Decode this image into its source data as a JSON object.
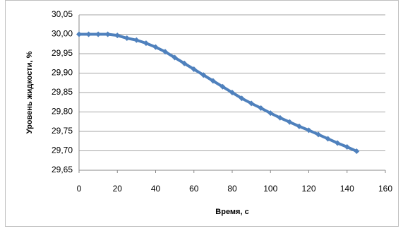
{
  "chart_data": {
    "type": "line",
    "x_label": "Время, с",
    "y_label": "Уровень жидкости, %",
    "x": [
      0,
      5,
      10,
      15,
      20,
      25,
      30,
      35,
      40,
      45,
      50,
      55,
      60,
      65,
      70,
      75,
      80,
      85,
      90,
      95,
      100,
      105,
      110,
      115,
      120,
      125,
      130,
      135,
      140,
      145
    ],
    "series": [
      {
        "color": "#4f81bd",
        "values": [
          30.0,
          30.0,
          30.0,
          30.0,
          29.997,
          29.99,
          29.985,
          29.977,
          29.967,
          29.955,
          29.94,
          29.925,
          29.91,
          29.895,
          29.88,
          29.865,
          29.85,
          29.835,
          29.822,
          29.81,
          29.797,
          29.785,
          29.774,
          29.763,
          29.753,
          29.742,
          29.731,
          29.72,
          29.71,
          29.699
        ]
      }
    ],
    "xlim": [
      0,
      160
    ],
    "xticks": [
      0,
      20,
      40,
      60,
      80,
      100,
      120,
      140,
      160
    ],
    "ylim": [
      29.65,
      30.05
    ],
    "yticks": [
      {
        "value": 29.65,
        "label": "29,65"
      },
      {
        "value": 29.7,
        "label": "29,70"
      },
      {
        "value": 29.75,
        "label": "29,75"
      },
      {
        "value": 29.8,
        "label": "29,80"
      },
      {
        "value": 29.85,
        "label": "29,85"
      },
      {
        "value": 29.9,
        "label": "29,90"
      },
      {
        "value": 29.95,
        "label": "29,95"
      },
      {
        "value": 30.0,
        "label": "30,00"
      },
      {
        "value": 30.05,
        "label": "30,05"
      }
    ],
    "grid": true
  }
}
